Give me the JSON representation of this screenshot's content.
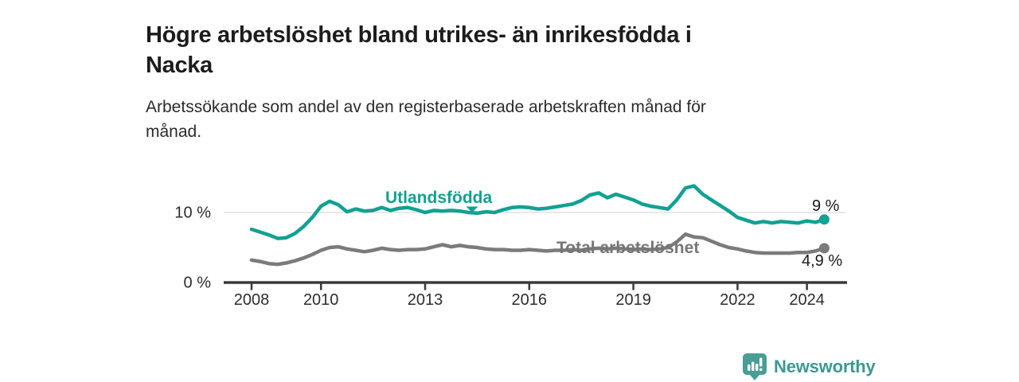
{
  "header": {
    "title": "Högre arbetslöshet bland utrikes- än inrikesfödda i Nacka",
    "title_lines": [
      "Högre arbetslöshet bland utrikes- än inrikesfödda i",
      "Nacka"
    ],
    "subtitle": "Arbetssökande som andel av den registerbaserade arbetskraften månad för månad.",
    "subtitle_lines": [
      "Arbetssökande som andel av den registerbaserade arbetskraften månad för",
      "månad."
    ]
  },
  "chart_data": {
    "type": "line",
    "title": "Högre arbetslöshet bland utrikes- än inrikesfödda i Nacka",
    "subtitle": "Arbetssökande som andel av den registerbaserade arbetskraften månad för månad.",
    "unit": "%",
    "x_unit": "decimal-year (monthly series, sampled quarterly)",
    "xlim": [
      2007.2,
      2025.15
    ],
    "ylim": [
      0,
      15.9
    ],
    "grid": {
      "y_gridlines_at": [
        10
      ]
    },
    "legend": "direct-labels-on-lines",
    "x": [
      2008.0,
      2008.25,
      2008.5,
      2008.75,
      2009.0,
      2009.25,
      2009.5,
      2009.75,
      2010.0,
      2010.25,
      2010.5,
      2010.75,
      2011.0,
      2011.25,
      2011.5,
      2011.75,
      2012.0,
      2012.25,
      2012.5,
      2012.75,
      2013.0,
      2013.25,
      2013.5,
      2013.75,
      2014.0,
      2014.25,
      2014.5,
      2014.75,
      2015.0,
      2015.25,
      2015.5,
      2015.75,
      2016.0,
      2016.25,
      2016.5,
      2016.75,
      2017.0,
      2017.25,
      2017.5,
      2017.75,
      2018.0,
      2018.25,
      2018.5,
      2018.75,
      2019.0,
      2019.25,
      2019.5,
      2019.75,
      2020.0,
      2020.25,
      2020.5,
      2020.75,
      2021.0,
      2021.25,
      2021.5,
      2021.75,
      2022.0,
      2022.25,
      2022.5,
      2022.75,
      2023.0,
      2023.25,
      2023.5,
      2023.75,
      2024.0,
      2024.25,
      2024.5
    ],
    "series": [
      {
        "name": "Utlandsfödda",
        "color": "#12A192",
        "end_label": "9 %",
        "end_value": 9.0,
        "values": [
          7.6,
          7.2,
          6.8,
          6.3,
          6.4,
          7.0,
          8.0,
          9.3,
          10.9,
          11.6,
          11.1,
          10.1,
          10.5,
          10.2,
          10.3,
          10.7,
          10.3,
          10.6,
          10.7,
          10.4,
          10.0,
          10.3,
          10.2,
          10.3,
          10.2,
          10.0,
          9.9,
          10.1,
          10.0,
          10.4,
          10.7,
          10.8,
          10.7,
          10.5,
          10.6,
          10.8,
          11.0,
          11.2,
          11.7,
          12.5,
          12.8,
          12.1,
          12.6,
          12.2,
          11.8,
          11.2,
          10.9,
          10.7,
          10.5,
          11.8,
          13.5,
          13.8,
          12.6,
          11.8,
          11.0,
          10.2,
          9.3,
          8.9,
          8.5,
          8.7,
          8.5,
          8.7,
          8.6,
          8.5,
          8.8,
          8.6,
          9.0
        ]
      },
      {
        "name": "Total arbetslöshet",
        "color": "#7B7B7B",
        "end_label": "4,9 %",
        "end_value": 4.9,
        "values": [
          3.2,
          3.0,
          2.7,
          2.6,
          2.8,
          3.1,
          3.5,
          4.0,
          4.6,
          5.0,
          5.1,
          4.8,
          4.6,
          4.4,
          4.6,
          4.9,
          4.7,
          4.6,
          4.7,
          4.7,
          4.8,
          5.1,
          5.4,
          5.1,
          5.3,
          5.1,
          5.0,
          4.8,
          4.7,
          4.7,
          4.6,
          4.6,
          4.7,
          4.6,
          4.5,
          4.6,
          4.6,
          4.7,
          4.6,
          4.8,
          4.9,
          4.8,
          4.9,
          4.8,
          4.7,
          4.8,
          4.7,
          4.8,
          5.0,
          5.8,
          6.9,
          6.5,
          6.4,
          5.9,
          5.4,
          5.0,
          4.8,
          4.5,
          4.3,
          4.2,
          4.2,
          4.2,
          4.2,
          4.3,
          4.3,
          4.5,
          4.9
        ]
      }
    ],
    "x_ticks": [
      {
        "value": 2008,
        "label": "2008"
      },
      {
        "value": 2010,
        "label": "2010"
      },
      {
        "value": 2013,
        "label": "2013"
      },
      {
        "value": 2016,
        "label": "2016"
      },
      {
        "value": 2019,
        "label": "2019"
      },
      {
        "value": 2022,
        "label": "2022"
      },
      {
        "value": 2024,
        "label": "2024"
      }
    ],
    "y_ticks": [
      {
        "value": 10,
        "label": "10 %"
      },
      {
        "value": 0,
        "label": "0 %"
      }
    ]
  },
  "footer": {
    "brand_name": "Newsworthy",
    "brand_color": "#3A9A90",
    "logo_icon": "newsworthy-barchart-bubble-icon"
  }
}
